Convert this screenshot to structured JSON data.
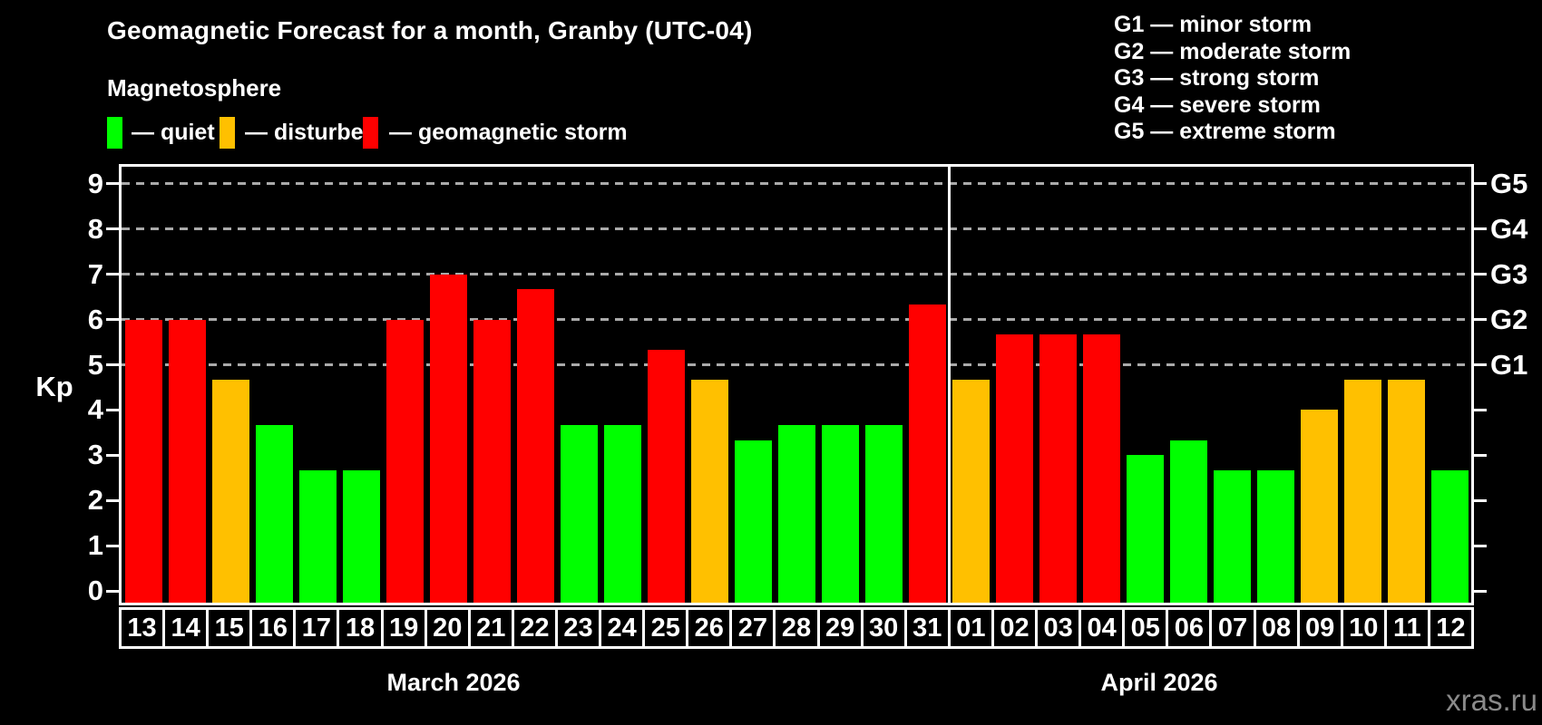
{
  "chart_data": {
    "type": "bar",
    "title": "Geomagnetic Forecast for a month, Granby (UTC-04)",
    "subtitle": "Magnetosphere",
    "ylabel": "Kp",
    "ylim": [
      0,
      9
    ],
    "yticks": [
      0,
      1,
      2,
      3,
      4,
      5,
      6,
      7,
      8,
      9
    ],
    "grid_levels": [
      5,
      6,
      7,
      8,
      9
    ],
    "right_axis": [
      {
        "kp": 5,
        "label": "G1"
      },
      {
        "kp": 6,
        "label": "G2"
      },
      {
        "kp": 7,
        "label": "G3"
      },
      {
        "kp": 8,
        "label": "G4"
      },
      {
        "kp": 9,
        "label": "G5"
      }
    ],
    "legend": [
      {
        "key": "quiet",
        "label": "— quiet"
      },
      {
        "key": "disturbed",
        "label": "— disturbed"
      },
      {
        "key": "storm",
        "label": "— geomagnetic storm"
      }
    ],
    "g_legend": [
      "G1 — minor storm",
      "G2 — moderate storm",
      "G3 — strong storm",
      "G4 — severe storm",
      "G5 — extreme storm"
    ],
    "colors": {
      "quiet": "#00ff00",
      "disturbed": "#ffc000",
      "storm": "#ff0000",
      "grid": "#aaaaaa",
      "axis": "#ffffff",
      "watermark": "#8a8a8a"
    },
    "months": [
      {
        "label": "March 2026",
        "days": [
          {
            "day": "13",
            "kp": 6.0,
            "level": "storm"
          },
          {
            "day": "14",
            "kp": 6.0,
            "level": "storm"
          },
          {
            "day": "15",
            "kp": 4.67,
            "level": "disturbed"
          },
          {
            "day": "16",
            "kp": 3.67,
            "level": "quiet"
          },
          {
            "day": "17",
            "kp": 2.67,
            "level": "quiet"
          },
          {
            "day": "18",
            "kp": 2.67,
            "level": "quiet"
          },
          {
            "day": "19",
            "kp": 6.0,
            "level": "storm"
          },
          {
            "day": "20",
            "kp": 7.0,
            "level": "storm"
          },
          {
            "day": "21",
            "kp": 6.0,
            "level": "storm"
          },
          {
            "day": "22",
            "kp": 6.67,
            "level": "storm"
          },
          {
            "day": "23",
            "kp": 3.67,
            "level": "quiet"
          },
          {
            "day": "24",
            "kp": 3.67,
            "level": "quiet"
          },
          {
            "day": "25",
            "kp": 5.33,
            "level": "storm"
          },
          {
            "day": "26",
            "kp": 4.67,
            "level": "disturbed"
          },
          {
            "day": "27",
            "kp": 3.33,
            "level": "quiet"
          },
          {
            "day": "28",
            "kp": 3.67,
            "level": "quiet"
          },
          {
            "day": "29",
            "kp": 3.67,
            "level": "quiet"
          },
          {
            "day": "30",
            "kp": 3.67,
            "level": "quiet"
          },
          {
            "day": "31",
            "kp": 6.33,
            "level": "storm"
          }
        ]
      },
      {
        "label": "April 2026",
        "days": [
          {
            "day": "01",
            "kp": 4.67,
            "level": "disturbed"
          },
          {
            "day": "02",
            "kp": 5.67,
            "level": "storm"
          },
          {
            "day": "03",
            "kp": 5.67,
            "level": "storm"
          },
          {
            "day": "04",
            "kp": 5.67,
            "level": "storm"
          },
          {
            "day": "05",
            "kp": 3.0,
            "level": "quiet"
          },
          {
            "day": "06",
            "kp": 3.33,
            "level": "quiet"
          },
          {
            "day": "07",
            "kp": 2.67,
            "level": "quiet"
          },
          {
            "day": "08",
            "kp": 2.67,
            "level": "quiet"
          },
          {
            "day": "09",
            "kp": 4.0,
            "level": "disturbed"
          },
          {
            "day": "10",
            "kp": 4.67,
            "level": "disturbed"
          },
          {
            "day": "11",
            "kp": 4.67,
            "level": "disturbed"
          },
          {
            "day": "12",
            "kp": 2.67,
            "level": "quiet"
          }
        ]
      }
    ],
    "watermark": "xras.ru"
  }
}
